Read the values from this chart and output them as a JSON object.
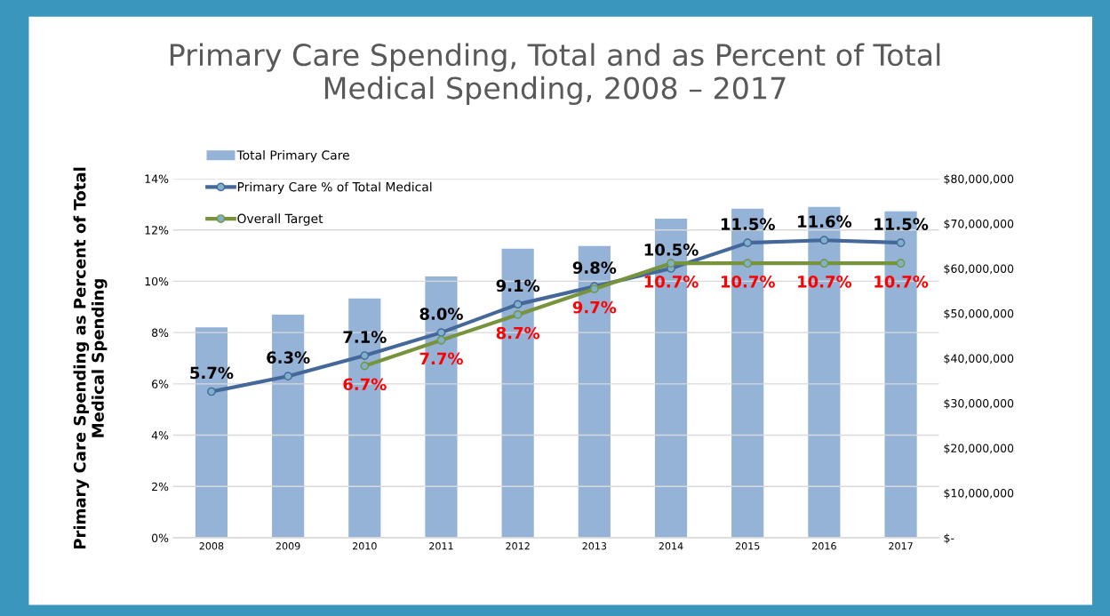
{
  "chart_data": {
    "type": "bar",
    "title": "Primary Care Spending, Total and as Percent of Total\nMedical Spending, 2008 – 2017",
    "ylabel": "Primary Care Spending as Percent of Total\nMedical Spending",
    "categories": [
      "2008",
      "2009",
      "2010",
      "2011",
      "2012",
      "2013",
      "2014",
      "2015",
      "2016",
      "2017"
    ],
    "series": [
      {
        "name": "Total Primary Care",
        "axis": "y2",
        "color": "#95b3d7",
        "values": [
          46900000,
          49700000,
          53300000,
          58200000,
          64400000,
          65000000,
          71100000,
          73300000,
          73700000,
          72700000
        ]
      },
      {
        "name": "Primary Care % of Total Medical",
        "type": "line",
        "color": "#44689a",
        "values": [
          5.7,
          6.3,
          7.1,
          8.0,
          9.1,
          9.8,
          10.5,
          11.5,
          11.6,
          11.5
        ],
        "value_labels": [
          "5.7%",
          "6.3%",
          "7.1%",
          "8.0%",
          "9.1%",
          "9.8%",
          "10.5%",
          "11.5%",
          "11.6%",
          "11.5%"
        ]
      },
      {
        "name": "Overall Target",
        "type": "line",
        "color": "#77933c",
        "values": [
          null,
          null,
          6.7,
          7.7,
          8.7,
          9.7,
          10.7,
          10.7,
          10.7,
          10.7
        ],
        "value_labels": [
          null,
          null,
          "6.7%",
          "7.7%",
          "8.7%",
          "9.7%",
          "10.7%",
          "10.7%",
          "10.7%",
          "10.7%"
        ]
      }
    ],
    "ylim": [
      0,
      14
    ],
    "yticks": [
      {
        "value": 0,
        "label": "0%"
      },
      {
        "value": 2,
        "label": "2%"
      },
      {
        "value": 4,
        "label": "4%"
      },
      {
        "value": 6,
        "label": "6%"
      },
      {
        "value": 8,
        "label": "8%"
      },
      {
        "value": 10,
        "label": "10%"
      },
      {
        "value": 12,
        "label": "12%"
      },
      {
        "value": 14,
        "label": "14%"
      }
    ],
    "y2lim": [
      0,
      80000000
    ],
    "y2ticks": [
      {
        "value": 0,
        "label": "$-"
      },
      {
        "value": 10000000,
        "label": "$10,000,000"
      },
      {
        "value": 20000000,
        "label": "$20,000,000"
      },
      {
        "value": 30000000,
        "label": "$30,000,000"
      },
      {
        "value": 40000000,
        "label": "$40,000,000"
      },
      {
        "value": 50000000,
        "label": "$50,000,000"
      },
      {
        "value": 60000000,
        "label": "$60,000,000"
      },
      {
        "value": 70000000,
        "label": "$70,000,000"
      },
      {
        "value": 80000000,
        "label": "$80,000,000"
      }
    ],
    "grid": "y",
    "legend": "top left",
    "marker": "circle",
    "line_style": "solid"
  }
}
